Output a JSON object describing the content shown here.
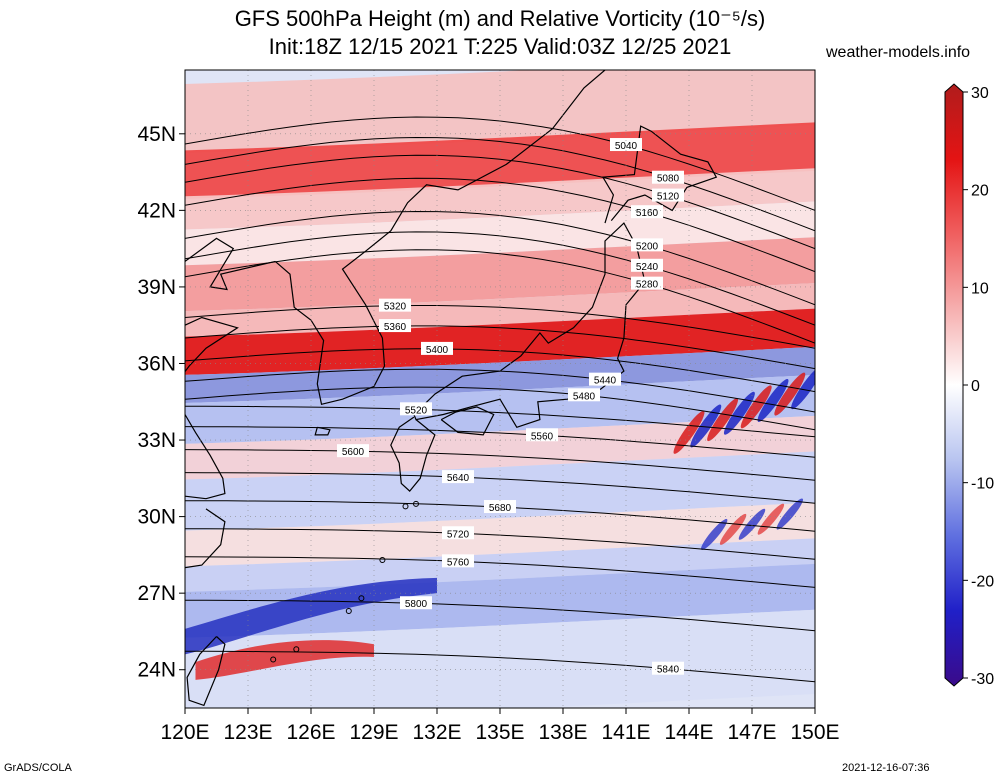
{
  "title_line1": "GFS 500hPa Height (m) and Relative Vorticity (10⁻⁵/s)",
  "title_line2": "Init:18Z 12/15 2021 T:225 Valid:03Z 12/25 2021",
  "site": "weather-models.info",
  "footer_left": "GrADS/COLA",
  "footer_right": "2021-12-16-07:36",
  "map": {
    "lon_range": [
      120,
      150
    ],
    "lat_range": [
      22.5,
      47.5
    ],
    "lat_ticks": [
      "24N",
      "27N",
      "30N",
      "33N",
      "36N",
      "39N",
      "42N",
      "45N"
    ],
    "lat_values": [
      24,
      27,
      30,
      33,
      36,
      39,
      42,
      45
    ],
    "lon_ticks": [
      "120E",
      "123E",
      "126E",
      "129E",
      "132E",
      "135E",
      "138E",
      "141E",
      "144E",
      "147E",
      "150E"
    ],
    "lon_values": [
      120,
      123,
      126,
      129,
      132,
      135,
      138,
      141,
      144,
      147,
      150
    ]
  },
  "colorbar": {
    "labels": [
      "30",
      "20",
      "10",
      "0",
      "-10",
      "-20",
      "-30"
    ],
    "values": [
      30,
      20,
      10,
      0,
      -10,
      -20,
      -30
    ],
    "colors": [
      "#b01c1c",
      "#e41414",
      "#f06060",
      "#f6b0b0",
      "#ffffff",
      "#b8c4f0",
      "#6070e0",
      "#2020c8",
      "#3a0a8a"
    ]
  },
  "contours": [
    {
      "label": "5040",
      "lat": 44.4
    },
    {
      "label": "5080",
      "lat": 43.6
    },
    {
      "label": "5120",
      "lat": 42.9
    },
    {
      "label": "5160",
      "lat": 42.0
    },
    {
      "label": "5200",
      "lat": 40.7
    },
    {
      "label": "5240",
      "lat": 39.9
    },
    {
      "label": "5280",
      "lat": 39.2
    },
    {
      "label": "5320",
      "lat": 37.7
    },
    {
      "label": "5360",
      "lat": 36.9
    },
    {
      "label": "5400",
      "lat": 36.0
    },
    {
      "label": "5440",
      "lat": 35.2
    },
    {
      "label": "5480",
      "lat": 34.5
    },
    {
      "label": "5520",
      "lat": 33.9
    },
    {
      "label": "5560",
      "lat": 33.1
    },
    {
      "label": "5600",
      "lat": 32.2
    },
    {
      "label": "5640",
      "lat": 31.3
    },
    {
      "label": "5680",
      "lat": 30.2
    },
    {
      "label": "5720",
      "lat": 29.1
    },
    {
      "label": "5760",
      "lat": 28.0
    },
    {
      "label": "5800",
      "lat": 26.3
    },
    {
      "label": "5840",
      "lat": 24.3
    }
  ]
}
